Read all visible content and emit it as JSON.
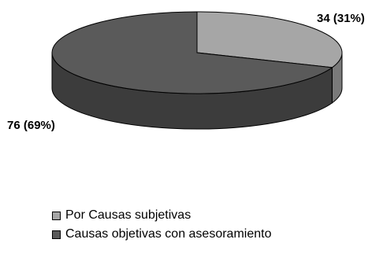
{
  "chart_data": {
    "type": "pie",
    "style": "3d-exploded-none",
    "slices": [
      {
        "name": "Por Causas subjetivas",
        "value": 34,
        "label": "34 (31%)",
        "color": "#a6a6a6",
        "side_color": "#7a7a7a"
      },
      {
        "name": "Causas objetivas con asesoramiento",
        "value": 76,
        "label": "76 (69%)",
        "color": "#5a5a5a",
        "side_color": "#3c3c3c"
      }
    ],
    "legend_position": "bottom-left",
    "outline_color": "#000000"
  }
}
